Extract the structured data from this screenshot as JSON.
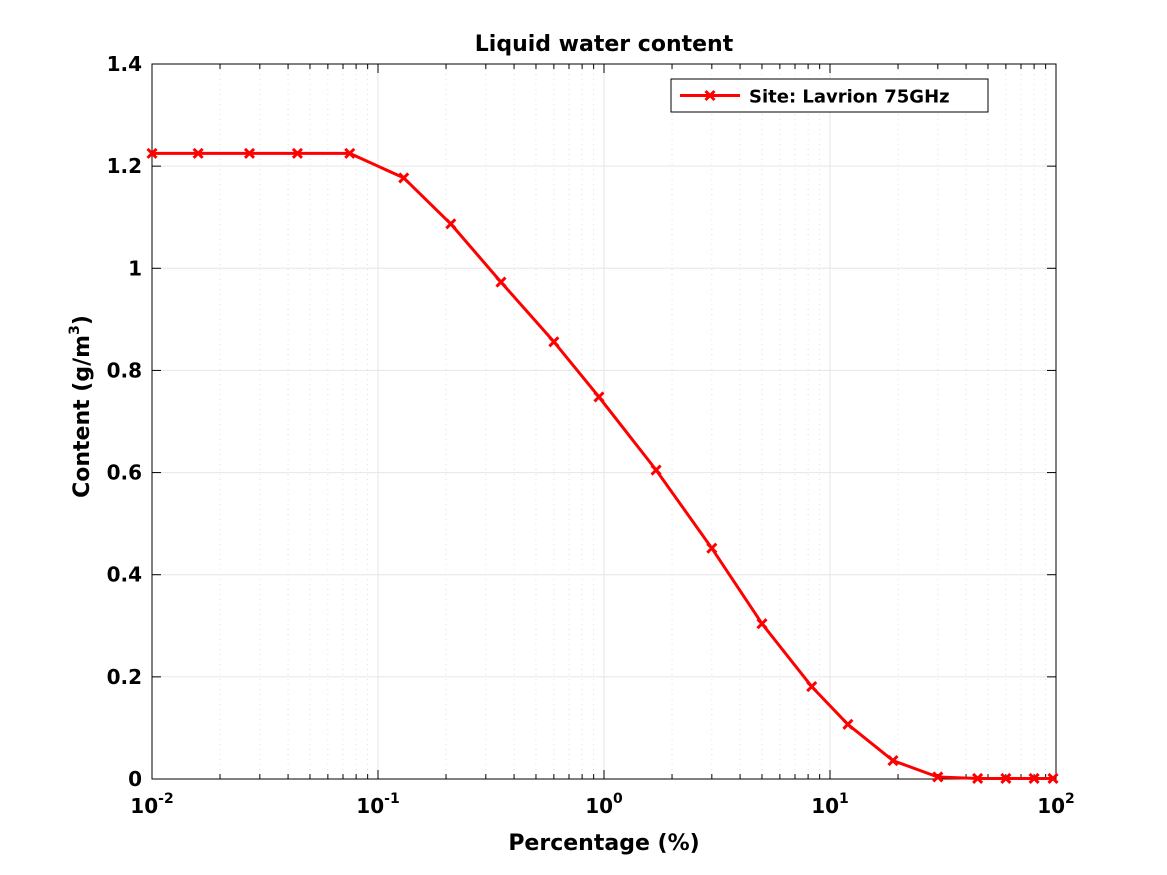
{
  "chart_data": {
    "type": "line",
    "title": "Liquid water content",
    "xlabel": "Percentage (%)",
    "ylabel_text": "Content (g/m",
    "ylabel_sup": "3",
    "ylabel_close": ")",
    "xscale": "log",
    "xlim": [
      0.01,
      100
    ],
    "ylim": [
      0,
      1.4
    ],
    "grid": true,
    "legend_position": "top-right",
    "x_ticks": [
      {
        "base": "10",
        "exp": "-2",
        "value": 0.01
      },
      {
        "base": "10",
        "exp": "-1",
        "value": 0.1
      },
      {
        "base": "10",
        "exp": "0",
        "value": 1
      },
      {
        "base": "10",
        "exp": "1",
        "value": 10
      },
      {
        "base": "10",
        "exp": "2",
        "value": 100
      }
    ],
    "y_ticks": [
      {
        "label": "0",
        "value": 0
      },
      {
        "label": "0.2",
        "value": 0.2
      },
      {
        "label": "0.4",
        "value": 0.4
      },
      {
        "label": "0.6",
        "value": 0.6
      },
      {
        "label": "0.8",
        "value": 0.8
      },
      {
        "label": "1",
        "value": 1.0
      },
      {
        "label": "1.2",
        "value": 1.2
      },
      {
        "label": "1.4",
        "value": 1.4
      }
    ],
    "series": [
      {
        "name": "Site: Lavrion 75GHz",
        "color": "#ff0000",
        "marker": "x",
        "x": [
          0.01,
          0.016,
          0.027,
          0.044,
          0.075,
          0.13,
          0.21,
          0.35,
          0.6,
          0.95,
          1.7,
          3.0,
          5.0,
          8.3,
          12,
          19,
          30,
          45,
          60,
          80,
          97
        ],
        "y": [
          1.225,
          1.225,
          1.225,
          1.225,
          1.225,
          1.177,
          1.087,
          0.973,
          0.856,
          0.748,
          0.605,
          0.452,
          0.304,
          0.181,
          0.107,
          0.036,
          0.004,
          0.001,
          0.001,
          0.001,
          0.001
        ]
      }
    ]
  }
}
